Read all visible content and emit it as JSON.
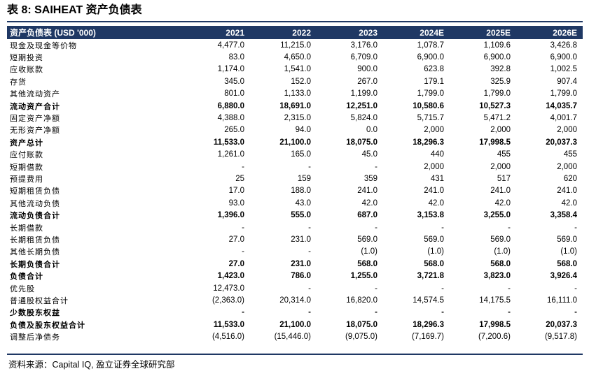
{
  "title": "表 8: SAIHEAT 资产负债表",
  "table": {
    "header": [
      "资产负债表 (USD '000)",
      "2021",
      "2022",
      "2023",
      "2024E",
      "2025E",
      "2026E"
    ],
    "rows": [
      {
        "label": "现金及现金等价物",
        "bold": false,
        "values": [
          "4,477.0",
          "11,215.0",
          "3,176.0",
          "1,078.7",
          "1,109.6",
          "3,426.8"
        ]
      },
      {
        "label": "短期投资",
        "bold": false,
        "values": [
          "83.0",
          "4,650.0",
          "6,709.0",
          "6,900.0",
          "6,900.0",
          "6,900.0"
        ]
      },
      {
        "label": "应收账款",
        "bold": false,
        "values": [
          "1,174.0",
          "1,541.0",
          "900.0",
          "623.8",
          "392.8",
          "1,002.5"
        ]
      },
      {
        "label": "存货",
        "bold": false,
        "values": [
          "345.0",
          "152.0",
          "267.0",
          "179.1",
          "325.9",
          "907.4"
        ]
      },
      {
        "label": "其他流动资产",
        "bold": false,
        "values": [
          "801.0",
          "1,133.0",
          "1,199.0",
          "1,799.0",
          "1,799.0",
          "1,799.0"
        ]
      },
      {
        "label": "流动资产合计",
        "bold": true,
        "values": [
          "6,880.0",
          "18,691.0",
          "12,251.0",
          "10,580.6",
          "10,527.3",
          "14,035.7"
        ]
      },
      {
        "label": "固定资产净额",
        "bold": false,
        "values": [
          "4,388.0",
          "2,315.0",
          "5,824.0",
          "5,715.7",
          "5,471.2",
          "4,001.7"
        ]
      },
      {
        "label": "无形资产净额",
        "bold": false,
        "values": [
          "265.0",
          "94.0",
          "0.0",
          "2,000",
          "2,000",
          "2,000"
        ]
      },
      {
        "label": "资产总计",
        "bold": true,
        "values": [
          "11,533.0",
          "21,100.0",
          "18,075.0",
          "18,296.3",
          "17,998.5",
          "20,037.3"
        ]
      },
      {
        "label": "应付账款",
        "bold": false,
        "values": [
          "1,261.0",
          "165.0",
          "45.0",
          "440",
          "455",
          "455"
        ]
      },
      {
        "label": "短期借款",
        "bold": false,
        "values": [
          "-",
          "-",
          "-",
          "2,000",
          "2,000",
          "2,000"
        ]
      },
      {
        "label": "预提费用",
        "bold": false,
        "values": [
          "25",
          "159",
          "359",
          "431",
          "517",
          "620"
        ]
      },
      {
        "label": "短期租赁负债",
        "bold": false,
        "values": [
          "17.0",
          "188.0",
          "241.0",
          "241.0",
          "241.0",
          "241.0"
        ]
      },
      {
        "label": "其他流动负债",
        "bold": false,
        "values": [
          "93.0",
          "43.0",
          "42.0",
          "42.0",
          "42.0",
          "42.0"
        ]
      },
      {
        "label": "流动负债合计",
        "bold": true,
        "values": [
          "1,396.0",
          "555.0",
          "687.0",
          "3,153.8",
          "3,255.0",
          "3,358.4"
        ]
      },
      {
        "label": "长期借款",
        "bold": false,
        "values": [
          "-",
          "-",
          "-",
          "-",
          "-",
          "-"
        ]
      },
      {
        "label": "长期租赁负债",
        "bold": false,
        "values": [
          "27.0",
          "231.0",
          "569.0",
          "569.0",
          "569.0",
          "569.0"
        ]
      },
      {
        "label": "其他长期负债",
        "bold": false,
        "values": [
          "-",
          "-",
          "(1.0)",
          "(1.0)",
          "(1.0)",
          "(1.0)"
        ]
      },
      {
        "label": "长期负债合计",
        "bold": true,
        "values": [
          "27.0",
          "231.0",
          "568.0",
          "568.0",
          "568.0",
          "568.0"
        ]
      },
      {
        "label": "负债合计",
        "bold": true,
        "values": [
          "1,423.0",
          "786.0",
          "1,255.0",
          "3,721.8",
          "3,823.0",
          "3,926.4"
        ]
      },
      {
        "label": "优先股",
        "bold": false,
        "values": [
          "12,473.0",
          "-",
          "-",
          "-",
          "-",
          "-"
        ]
      },
      {
        "label": "普通股权益合计",
        "bold": false,
        "values": [
          "(2,363.0)",
          "20,314.0",
          "16,820.0",
          "14,574.5",
          "14,175.5",
          "16,111.0"
        ]
      },
      {
        "label": "少数股东权益",
        "bold": true,
        "values": [
          "-",
          "-",
          "-",
          "-",
          "-",
          "-"
        ]
      },
      {
        "label": "负债及股东权益合计",
        "bold": true,
        "values": [
          "11,533.0",
          "21,100.0",
          "18,075.0",
          "18,296.3",
          "17,998.5",
          "20,037.3"
        ]
      },
      {
        "label": "调整后净债务",
        "bold": false,
        "values": [
          "(4,516.0)",
          "(15,446.0)",
          "(9,075.0)",
          "(7,169.7)",
          "(7,200.6)",
          "(9,517.8)"
        ]
      }
    ]
  },
  "source": "资料来源：Capital IQ, 盈立证券全球研究部"
}
